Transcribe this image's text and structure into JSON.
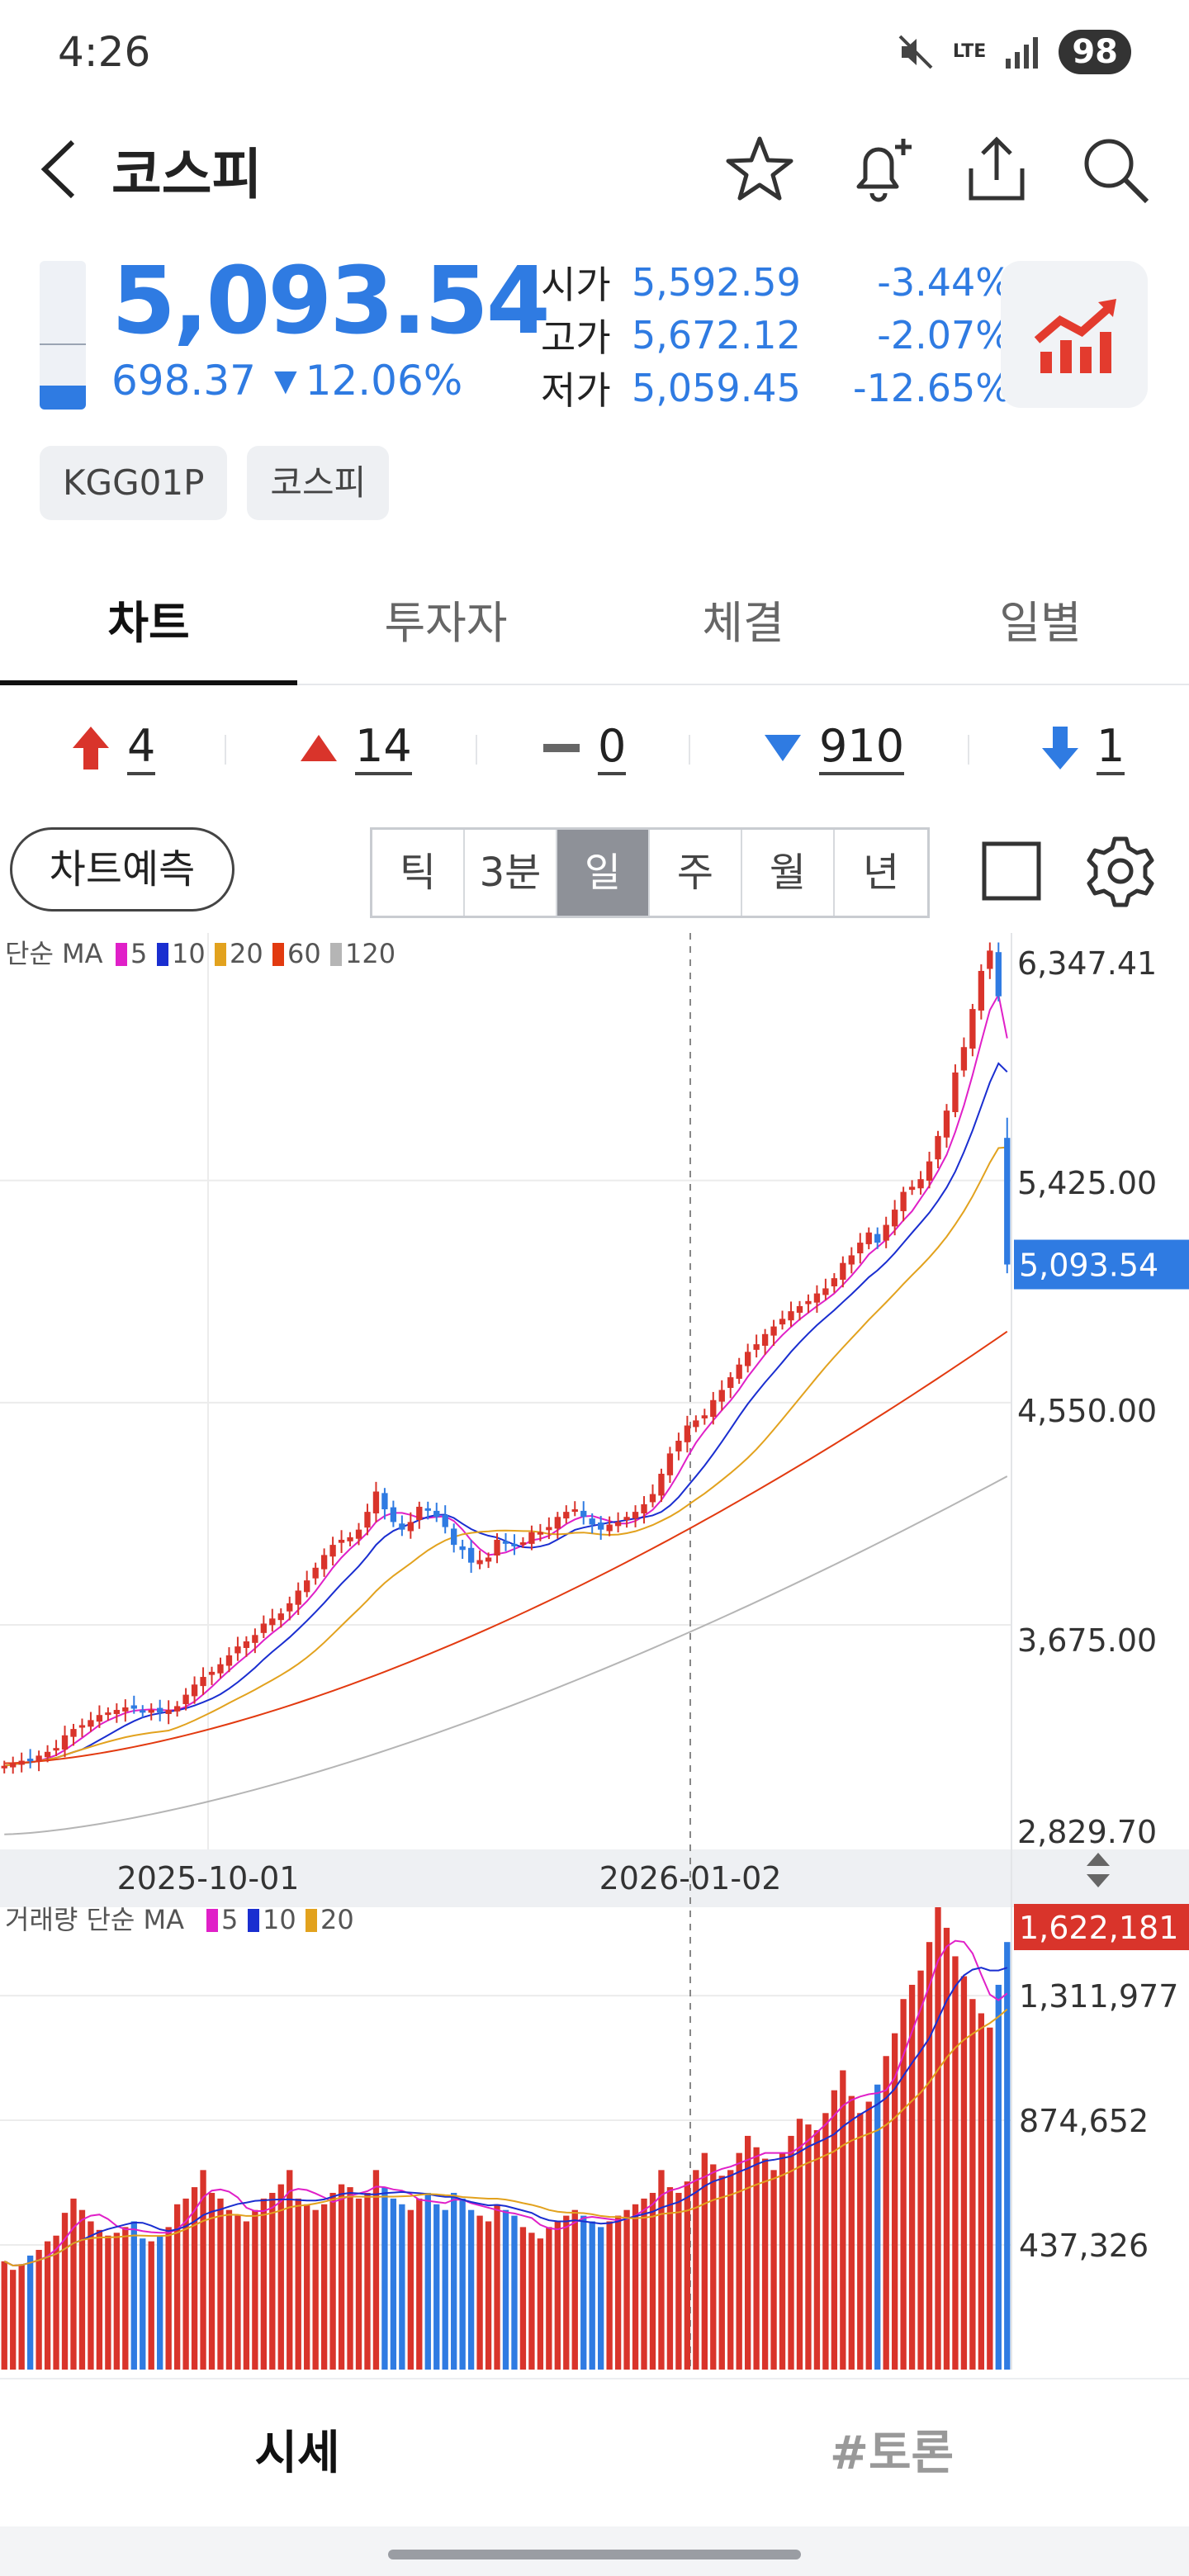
{
  "status": {
    "time": "4:26",
    "network": "LTE",
    "battery": "98"
  },
  "header": {
    "title": "코스피"
  },
  "quote": {
    "price": "5,093.54",
    "change": "698.37",
    "change_pct": "12.06%",
    "gauge_fill": 0.16,
    "open_label": "시가",
    "open": "5,592.59",
    "open_pct": "-3.44%",
    "high_label": "고가",
    "high": "5,672.12",
    "high_pct": "-2.07%",
    "low_label": "저가",
    "low": "5,059.45",
    "low_pct": "-12.65%"
  },
  "tags": [
    "KGG01P",
    "코스피"
  ],
  "tabs": [
    "차트",
    "투자자",
    "체결",
    "일별"
  ],
  "breadth": {
    "upper_limit": "4",
    "up": "14",
    "flat": "0",
    "down": "910",
    "lower_limit": "1"
  },
  "controls": {
    "forecast": "차트예측",
    "periods": [
      "틱",
      "3분",
      "일",
      "주",
      "월",
      "년"
    ],
    "active_period": "일"
  },
  "chart_data": {
    "type": "candlestick",
    "price_legend": {
      "prefix": "단순 MA",
      "periods": [
        "5",
        "10",
        "20",
        "60",
        "120"
      ],
      "colors": [
        "#e020c8",
        "#1a2ed0",
        "#e2a21e",
        "#e23a10",
        "#b5b5b5"
      ]
    },
    "volume_legend": {
      "prefix": "거래량 단순 MA",
      "periods": [
        "5",
        "10",
        "20"
      ],
      "colors": [
        "#e020c8",
        "#1a2ed0",
        "#e2a21e"
      ]
    },
    "y_ticks": [
      "6,347.41",
      "5,425.00",
      "4,550.00",
      "3,675.00",
      "2,829.70"
    ],
    "y_tick_values": [
      6347.41,
      5425.0,
      4550.0,
      3675.0,
      2829.7
    ],
    "current_price": "5,093.54",
    "x_ticks": [
      "2025-10-01",
      "2026-01-02"
    ],
    "volume_ticks": [
      "1,622,181",
      "1,311,977",
      "874,652",
      "437,326"
    ],
    "volume_tick_values": [
      1622181,
      1311977,
      874652,
      437326
    ],
    "ylim": [
      2829.7,
      6347.41
    ],
    "volume_max": 1622181,
    "close": [
      3120,
      3130,
      3140,
      3145,
      3160,
      3175,
      3190,
      3240,
      3265,
      3280,
      3300,
      3320,
      3330,
      3340,
      3350,
      3345,
      3335,
      3340,
      3330,
      3340,
      3355,
      3400,
      3440,
      3470,
      3490,
      3520,
      3555,
      3590,
      3610,
      3635,
      3680,
      3700,
      3720,
      3760,
      3810,
      3850,
      3900,
      3950,
      3990,
      4010,
      4020,
      4050,
      4120,
      4200,
      4130,
      4080,
      4050,
      4080,
      4140,
      4130,
      4100,
      4060,
      3990,
      3970,
      3920,
      3930,
      3940,
      4010,
      4000,
      3990,
      4000,
      4040,
      4040,
      4060,
      4100,
      4120,
      4130,
      4100,
      4070,
      4050,
      4070,
      4080,
      4100,
      4120,
      4150,
      4190,
      4270,
      4350,
      4400,
      4460,
      4480,
      4500,
      4560,
      4600,
      4650,
      4700,
      4750,
      4780,
      4820,
      4850,
      4880,
      4910,
      4930,
      4950,
      4980,
      5000,
      5040,
      5100,
      5130,
      5180,
      5220,
      5180,
      5250,
      5310,
      5380,
      5400,
      5430,
      5500,
      5600,
      5700,
      5850,
      5950,
      6100,
      6250,
      6330,
      6150,
      5094
    ],
    "volume": [
      380000,
      350000,
      370000,
      400000,
      420000,
      450000,
      470000,
      550000,
      600000,
      560000,
      520000,
      490000,
      470000,
      480000,
      500000,
      520000,
      460000,
      450000,
      470000,
      500000,
      580000,
      600000,
      640000,
      700000,
      620000,
      600000,
      560000,
      540000,
      520000,
      560000,
      600000,
      620000,
      650000,
      700000,
      600000,
      580000,
      560000,
      580000,
      620000,
      650000,
      640000,
      600000,
      620000,
      700000,
      640000,
      600000,
      580000,
      560000,
      600000,
      620000,
      580000,
      560000,
      620000,
      600000,
      560000,
      540000,
      520000,
      580000,
      560000,
      540000,
      500000,
      480000,
      460000,
      500000,
      520000,
      540000,
      560000,
      540000,
      520000,
      500000,
      520000,
      540000,
      560000,
      580000,
      600000,
      620000,
      700000,
      640000,
      620000,
      660000,
      700000,
      760000,
      720000,
      680000,
      700000,
      760000,
      820000,
      780000,
      740000,
      700000,
      760000,
      820000,
      880000,
      860000,
      840000,
      900000,
      980000,
      1050000,
      960000,
      900000,
      940000,
      1000000,
      1100000,
      1180000,
      1300000,
      1350000,
      1400000,
      1500000,
      1622181,
      1550000,
      1450000,
      1380000,
      1300000,
      1250000,
      1200000,
      1350000,
      1500000
    ]
  },
  "bottom_tabs": {
    "quote": "시세",
    "discussion": "#토론"
  },
  "colors": {
    "up": "#d9342b",
    "down": "#2f7be2",
    "accent": "#2f7be2",
    "ma5": "#e020c8",
    "ma10": "#1a2ed0",
    "ma20": "#e2a21e",
    "ma60": "#e23a10",
    "ma120": "#b5b5b5"
  }
}
